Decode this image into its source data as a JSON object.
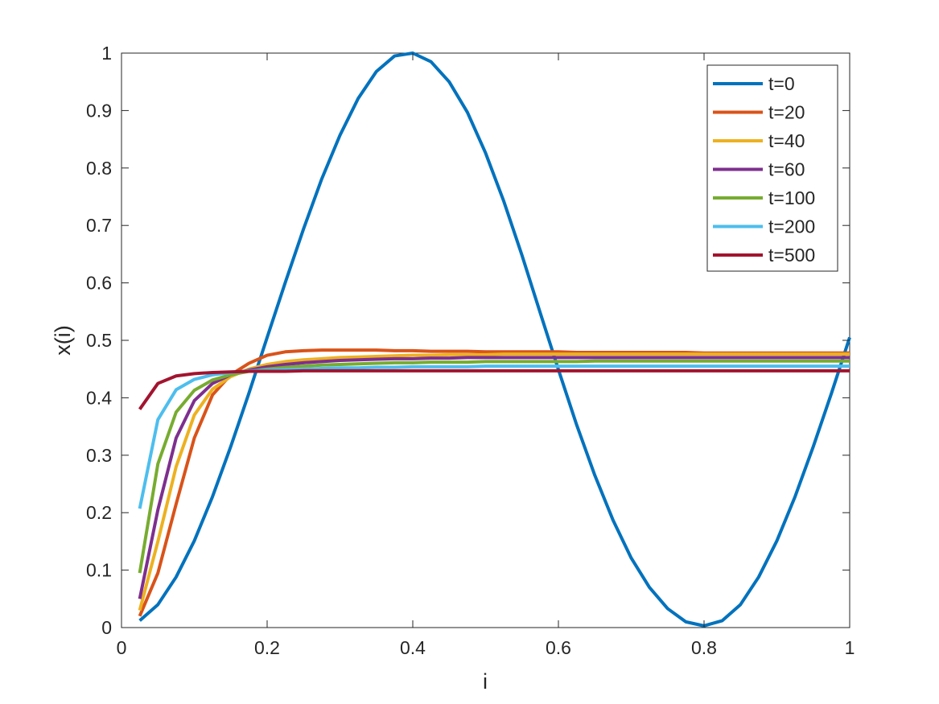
{
  "chart_data": {
    "type": "line",
    "title": "",
    "xlabel": "i",
    "ylabel": "x(i)",
    "xlim": [
      0,
      1
    ],
    "ylim": [
      0,
      1
    ],
    "x_ticks": [
      "0",
      "0.2",
      "0.4",
      "0.6",
      "0.8",
      "1"
    ],
    "y_ticks": [
      "0",
      "0.1",
      "0.2",
      "0.3",
      "0.4",
      "0.5",
      "0.6",
      "0.7",
      "0.8",
      "0.9",
      "1"
    ],
    "grid": false,
    "legend_position": "top-right",
    "x": [
      0.025,
      0.05,
      0.075,
      0.1,
      0.125,
      0.15,
      0.175,
      0.2,
      0.225,
      0.25,
      0.275,
      0.3,
      0.325,
      0.35,
      0.375,
      0.4,
      0.425,
      0.45,
      0.475,
      0.5,
      0.525,
      0.55,
      0.575,
      0.6,
      0.625,
      0.65,
      0.675,
      0.7,
      0.725,
      0.75,
      0.775,
      0.8,
      0.825,
      0.85,
      0.875,
      0.9,
      0.925,
      0.95,
      0.975,
      1.0
    ],
    "series": [
      {
        "name": "t=0",
        "color": "#0072BD",
        "values": [
          0.012,
          0.04,
          0.088,
          0.151,
          0.228,
          0.315,
          0.408,
          0.505,
          0.601,
          0.694,
          0.781,
          0.857,
          0.921,
          0.968,
          0.995,
          1.0,
          0.985,
          0.95,
          0.897,
          0.826,
          0.742,
          0.648,
          0.548,
          0.449,
          0.353,
          0.265,
          0.187,
          0.121,
          0.07,
          0.033,
          0.01,
          0.003,
          0.012,
          0.04,
          0.088,
          0.151,
          0.228,
          0.315,
          0.408,
          0.505
        ]
      },
      {
        "name": "t=20",
        "color": "#D95319",
        "values": [
          0.02,
          0.095,
          0.215,
          0.33,
          0.405,
          0.44,
          0.46,
          0.474,
          0.48,
          0.482,
          0.483,
          0.483,
          0.483,
          0.483,
          0.482,
          0.482,
          0.481,
          0.481,
          0.481,
          0.48,
          0.48,
          0.48,
          0.48,
          0.48,
          0.479,
          0.479,
          0.479,
          0.479,
          0.479,
          0.479,
          0.479,
          0.478,
          0.478,
          0.478,
          0.478,
          0.478,
          0.478,
          0.478,
          0.478,
          0.478
        ]
      },
      {
        "name": "t=40",
        "color": "#EDB120",
        "values": [
          0.03,
          0.15,
          0.28,
          0.37,
          0.415,
          0.437,
          0.45,
          0.458,
          0.463,
          0.466,
          0.468,
          0.47,
          0.471,
          0.472,
          0.473,
          0.474,
          0.474,
          0.475,
          0.475,
          0.475,
          0.476,
          0.476,
          0.476,
          0.476,
          0.476,
          0.476,
          0.476,
          0.476,
          0.476,
          0.476,
          0.476,
          0.476,
          0.476,
          0.476,
          0.476,
          0.476,
          0.476,
          0.476,
          0.476,
          0.476
        ]
      },
      {
        "name": "t=60",
        "color": "#7E2F8E",
        "values": [
          0.05,
          0.205,
          0.33,
          0.395,
          0.425,
          0.44,
          0.448,
          0.454,
          0.458,
          0.461,
          0.463,
          0.465,
          0.466,
          0.467,
          0.468,
          0.468,
          0.469,
          0.469,
          0.47,
          0.47,
          0.47,
          0.47,
          0.47,
          0.47,
          0.47,
          0.47,
          0.47,
          0.47,
          0.47,
          0.47,
          0.47,
          0.47,
          0.47,
          0.47,
          0.47,
          0.47,
          0.47,
          0.47,
          0.47,
          0.47
        ]
      },
      {
        "name": "t=100",
        "color": "#77AC30",
        "values": [
          0.095,
          0.285,
          0.375,
          0.413,
          0.431,
          0.44,
          0.446,
          0.45,
          0.453,
          0.455,
          0.457,
          0.458,
          0.459,
          0.46,
          0.461,
          0.461,
          0.462,
          0.462,
          0.462,
          0.463,
          0.463,
          0.463,
          0.463,
          0.463,
          0.463,
          0.464,
          0.464,
          0.464,
          0.464,
          0.464,
          0.464,
          0.464,
          0.464,
          0.464,
          0.464,
          0.464,
          0.464,
          0.464,
          0.464,
          0.464
        ]
      },
      {
        "name": "t=200",
        "color": "#4DBEEE",
        "values": [
          0.207,
          0.362,
          0.414,
          0.432,
          0.44,
          0.444,
          0.447,
          0.448,
          0.449,
          0.45,
          0.451,
          0.452,
          0.452,
          0.453,
          0.453,
          0.454,
          0.454,
          0.454,
          0.454,
          0.455,
          0.455,
          0.455,
          0.455,
          0.455,
          0.455,
          0.455,
          0.455,
          0.455,
          0.455,
          0.455,
          0.455,
          0.455,
          0.455,
          0.455,
          0.455,
          0.455,
          0.455,
          0.455,
          0.455,
          0.455
        ]
      },
      {
        "name": "t=500",
        "color": "#A2142F",
        "values": [
          0.38,
          0.425,
          0.438,
          0.442,
          0.444,
          0.445,
          0.446,
          0.446,
          0.446,
          0.447,
          0.447,
          0.447,
          0.447,
          0.447,
          0.447,
          0.447,
          0.447,
          0.447,
          0.447,
          0.447,
          0.447,
          0.447,
          0.447,
          0.447,
          0.447,
          0.447,
          0.447,
          0.447,
          0.447,
          0.447,
          0.447,
          0.447,
          0.447,
          0.447,
          0.447,
          0.447,
          0.447,
          0.447,
          0.447,
          0.447
        ]
      }
    ]
  }
}
